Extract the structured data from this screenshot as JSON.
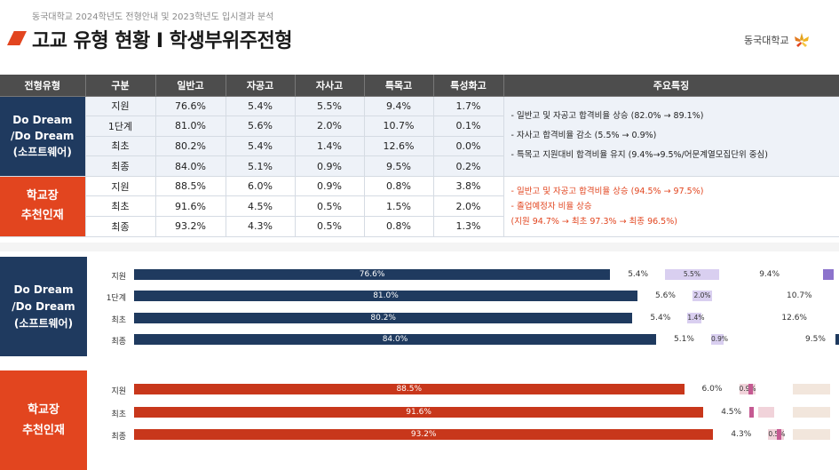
{
  "header": {
    "caption": "동국대학교 2024학년도 전형안내 및 2023학년도 입시결과 분석",
    "title": "고교 유형 현황 I 학생부위주전형",
    "logo_text": "동국대학교",
    "logo_icon": "lotus-icon"
  },
  "table": {
    "headers": [
      "전형유형",
      "구분",
      "일반고",
      "자공고",
      "자사고",
      "특목고",
      "특성화고",
      "주요특징"
    ],
    "groups": [
      {
        "label_lines": [
          "Do Dream",
          "/Do Dream",
          "(소프트웨어)"
        ],
        "rows": [
          [
            "지원",
            "76.6%",
            "5.4%",
            "5.5%",
            "9.4%",
            "1.7%"
          ],
          [
            "1단계",
            "81.0%",
            "5.6%",
            "2.0%",
            "10.7%",
            "0.1%"
          ],
          [
            "최초",
            "80.2%",
            "5.4%",
            "1.4%",
            "12.6%",
            "0.0%"
          ],
          [
            "최종",
            "84.0%",
            "5.1%",
            "0.9%",
            "9.5%",
            "0.2%"
          ]
        ],
        "features": [
          "- 일반고 및 자공고 합격비율 상승 (82.0% → 89.1%)",
          "- 자사고 합격비율 감소 (5.5% → 0.9%)",
          "- 특목고 지원대비 합격비율 유지 (9.4%→9.5%/어문계열모집단위 중심)"
        ]
      },
      {
        "label_lines": [
          "학교장",
          "추천인재"
        ],
        "rows": [
          [
            "지원",
            "88.5%",
            "6.0%",
            "0.9%",
            "0.8%",
            "3.8%"
          ],
          [
            "최초",
            "91.6%",
            "4.5%",
            "0.5%",
            "1.5%",
            "2.0%"
          ],
          [
            "최종",
            "93.2%",
            "4.3%",
            "0.5%",
            "0.8%",
            "1.3%"
          ]
        ],
        "features": [
          "- 일반고 및 자공고 합격비율 상승 (94.5% → 97.5%)",
          "- 졸업예정자 비율 상승",
          "(지원 94.7% → 최초 97.3% → 최종 96.5%)"
        ]
      }
    ]
  },
  "chart_data": [
    {
      "type": "bar",
      "group_label": [
        "Do Dream",
        "/Do Dream",
        "(소프트웨어)"
      ],
      "categories": [
        "지원",
        "1단계",
        "최초",
        "최종"
      ],
      "series": [
        {
          "values": [
            76.6,
            81.0,
            80.2,
            84.0
          ],
          "labels": [
            "76.6%",
            "81.0%",
            "80.2%",
            "84.0%"
          ]
        },
        {
          "values": [
            5.4,
            5.6,
            5.4,
            5.1
          ],
          "labels": [
            "5.4%",
            "5.6%",
            "5.4%",
            "5.1%"
          ]
        },
        {
          "values": [
            5.5,
            2.0,
            1.4,
            0.9
          ],
          "labels": [
            "5.5%",
            "2.0%",
            "1.4%",
            "0.9%"
          ]
        },
        {
          "values": [
            9.4,
            10.7,
            12.6,
            9.5
          ],
          "labels": [
            "9.4%",
            "10.7%",
            "12.6%",
            "9.5%"
          ]
        }
      ],
      "colors": [
        "#1f3a5f",
        "#d9cff0",
        "#8c73cc"
      ]
    },
    {
      "type": "bar",
      "group_label": [
        "학교장",
        "추천인재"
      ],
      "categories": [
        "지원",
        "최초",
        "최종"
      ],
      "series": [
        {
          "values": [
            88.5,
            91.6,
            93.2
          ],
          "labels": [
            "88.5%",
            "91.6%",
            "93.2%"
          ]
        },
        {
          "values": [
            6.0,
            4.5,
            4.3
          ],
          "labels": [
            "6.0%",
            "4.5%",
            "4.3%"
          ]
        },
        {
          "values": [
            0.9,
            0.5,
            0.5
          ],
          "labels": [
            "0.9%",
            "",
            "0.5%"
          ]
        }
      ],
      "colors": [
        "#c8371b",
        "#f1d3da",
        "#c55a92"
      ]
    }
  ]
}
